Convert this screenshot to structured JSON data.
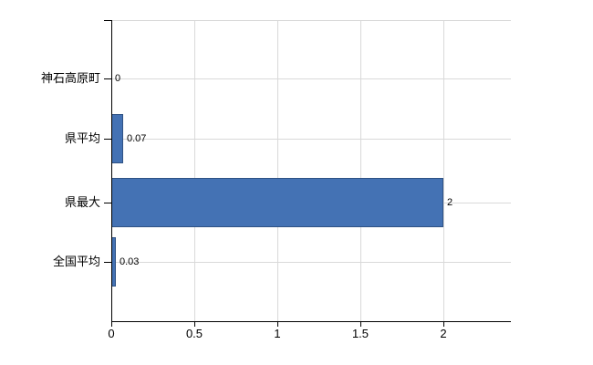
{
  "chart_data": {
    "type": "bar",
    "orientation": "horizontal",
    "title": "",
    "xlabel": "",
    "ylabel": "",
    "categories": [
      "神石高原町",
      "県平均",
      "県最大",
      "全国平均"
    ],
    "values": [
      0,
      0.07,
      2,
      0.03
    ],
    "value_labels": [
      "0",
      "0.07",
      "2",
      "0.03"
    ],
    "x_ticks": [
      0,
      0.5,
      1,
      1.5,
      2
    ],
    "x_tick_labels": [
      "0",
      "0.5",
      "1",
      "1.5",
      "2"
    ],
    "xlim": [
      0,
      2.41
    ],
    "grid": true,
    "legend": false,
    "colors": {
      "bar_fill": "#4472b4",
      "bar_border": "#2f5284",
      "grid": "#d9d9d9",
      "axis": "#000000",
      "text": "#000000",
      "background": "#ffffff"
    }
  }
}
